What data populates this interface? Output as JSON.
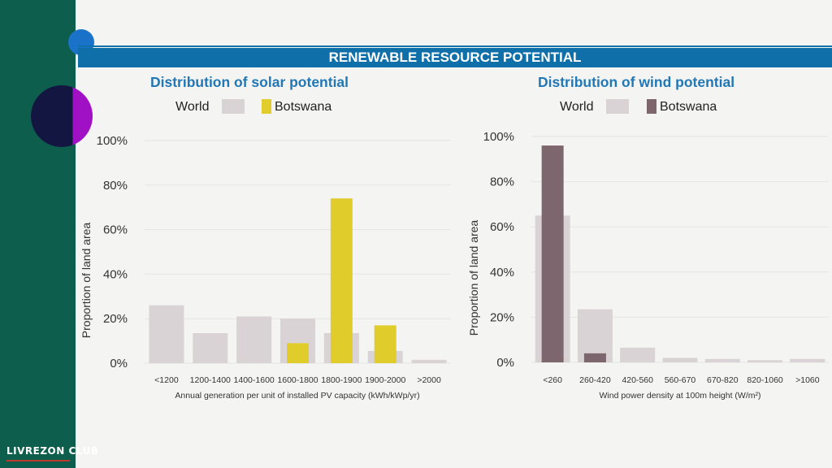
{
  "banner": {
    "title": "RENEWABLE RESOURCE POTENTIAL"
  },
  "brand": {
    "name": "LIVREZON CLUB"
  },
  "colors": {
    "sidebar": "#0d5e4c",
    "banner": "#0f6fa8",
    "title": "#2277b5",
    "world": "#d9d3d6",
    "solar_botswana": "#e0cd2c",
    "wind_botswana": "#7d666d"
  },
  "chart_data": [
    {
      "type": "bar",
      "title": "Distribution of solar potential",
      "xlabel": "Annual generation per unit of installed PV capacity (kWh/kWp/yr)",
      "ylabel": "Proportion of land area",
      "ylim": [
        0,
        100
      ],
      "yticks": [
        "0%",
        "20%",
        "40%",
        "60%",
        "80%",
        "100%"
      ],
      "legend": "top-left",
      "categories": [
        "<1200",
        "1200-1400",
        "1400-1600",
        "1600-1800",
        "1800-1900",
        "1900-2000",
        ">2000"
      ],
      "series": [
        {
          "name": "World",
          "color": "#d9d3d6",
          "values": [
            26,
            13.5,
            21,
            20,
            13.5,
            5.5,
            1.5
          ]
        },
        {
          "name": "Botswana",
          "color": "#e0cd2c",
          "values": [
            0,
            0,
            0,
            9,
            74,
            17,
            0
          ]
        }
      ]
    },
    {
      "type": "bar",
      "title": "Distribution of wind potential",
      "xlabel": "Wind power density at 100m height (W/m²)",
      "ylabel": "Proportion of land area",
      "ylim": [
        0,
        100
      ],
      "yticks": [
        "0%",
        "20%",
        "40%",
        "60%",
        "80%",
        "100%"
      ],
      "legend": "top-left",
      "categories": [
        "<260",
        "260-420",
        "420-560",
        "560-670",
        "670-820",
        "820-1060",
        ">1060"
      ],
      "series": [
        {
          "name": "World",
          "color": "#d9d3d6",
          "values": [
            65,
            23.5,
            6.5,
            2,
            1.5,
            1,
            1.5
          ]
        },
        {
          "name": "Botswana",
          "color": "#7d666d",
          "values": [
            96,
            4,
            0,
            0,
            0,
            0,
            0
          ]
        }
      ]
    }
  ]
}
